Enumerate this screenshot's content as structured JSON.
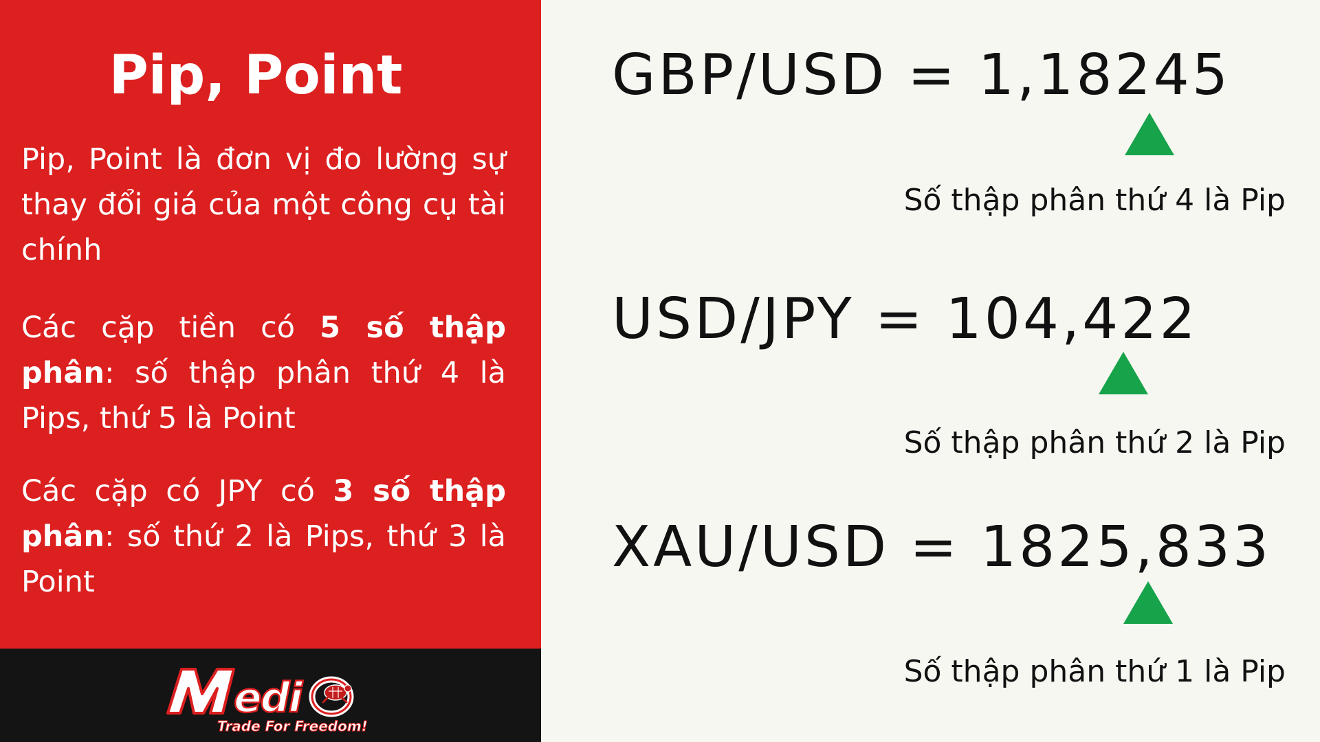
{
  "left_panel": {
    "title": "Pip, Point",
    "para1": "Pip, Point là đơn vị đo lường sự thay đổi giá của một công cụ tài chính",
    "para2": {
      "prefix": "Các cặp tiền có ",
      "bold": "5 số thập phân",
      "suffix": ": số thập phân thứ 4 là Pips, thứ 5 là Point"
    },
    "para3": {
      "prefix": "Các cặp có JPY có ",
      "bold": "3 số thập phân",
      "suffix": ": số thứ 2 là Pips, thứ 3 là Point"
    }
  },
  "logo": {
    "brand": "Medio",
    "tagline": "Trade For Freedom!"
  },
  "quotes": [
    {
      "text": "GBP/USD = 1,18245",
      "note": "Số thập phân thứ 4 là Pip"
    },
    {
      "text": "USD/JPY = 104,422",
      "note": "Số thập phân thứ 2 là Pip"
    },
    {
      "text": "XAU/USD = 1825,833",
      "note": "Số thập phân thứ 1 là Pip"
    }
  ],
  "colors": {
    "panel_red": "#dc1f1f",
    "footer_black": "#141414",
    "background": "#f7f7f2",
    "arrow_green": "#16a34a"
  },
  "icons": [
    "up-triangle-icon",
    "turtle-icon"
  ]
}
